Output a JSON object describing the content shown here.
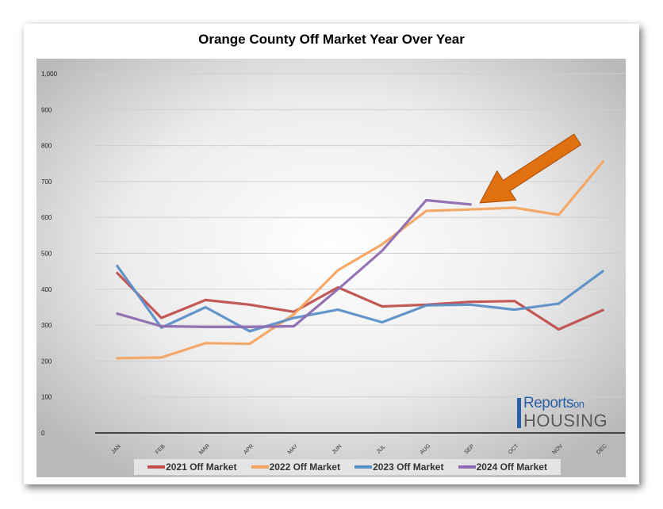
{
  "chart_data": {
    "type": "line",
    "title": "Orange County Off Market Year Over Year",
    "categories": [
      "JAN",
      "FEB",
      "MAR",
      "APR",
      "MAY",
      "JUN",
      "JUL",
      "AUG",
      "SEP",
      "OCT",
      "NOV",
      "DEC"
    ],
    "ylim": [
      0,
      1000
    ],
    "yticks": [
      0,
      100,
      200,
      300,
      400,
      500,
      600,
      700,
      800,
      900,
      1000
    ],
    "ytick_labels": [
      "0",
      "100",
      "200",
      "300",
      "400",
      "500",
      "600",
      "700",
      "800",
      "900",
      "1,000"
    ],
    "grid": true,
    "legend_position": "bottom",
    "series": [
      {
        "name": "2021 Off Market",
        "color": "#c0504d",
        "values": [
          445,
          320,
          370,
          357,
          337,
          405,
          352,
          357,
          365,
          367,
          288,
          342
        ]
      },
      {
        "name": "2022 Off Market",
        "color": "#f4a460",
        "values": [
          208,
          210,
          250,
          248,
          330,
          453,
          525,
          618,
          622,
          627,
          607,
          755
        ]
      },
      {
        "name": "2023 Off Market",
        "color": "#5b8fc7",
        "values": [
          465,
          293,
          350,
          283,
          320,
          343,
          308,
          355,
          357,
          343,
          360,
          450
        ]
      },
      {
        "name": "2024 Off Market",
        "color": "#8e6bb0",
        "values": [
          332,
          297,
          295,
          295,
          297,
          400,
          507,
          648,
          636,
          null,
          null,
          null
        ]
      }
    ],
    "annotation": {
      "type": "arrow",
      "color": "#e07010",
      "points_to": {
        "category": "SEP",
        "value": 636
      }
    }
  },
  "logo": {
    "line1": "eports",
    "line1_suffix": "on",
    "line2": "HOUSING",
    "letter": "R"
  }
}
